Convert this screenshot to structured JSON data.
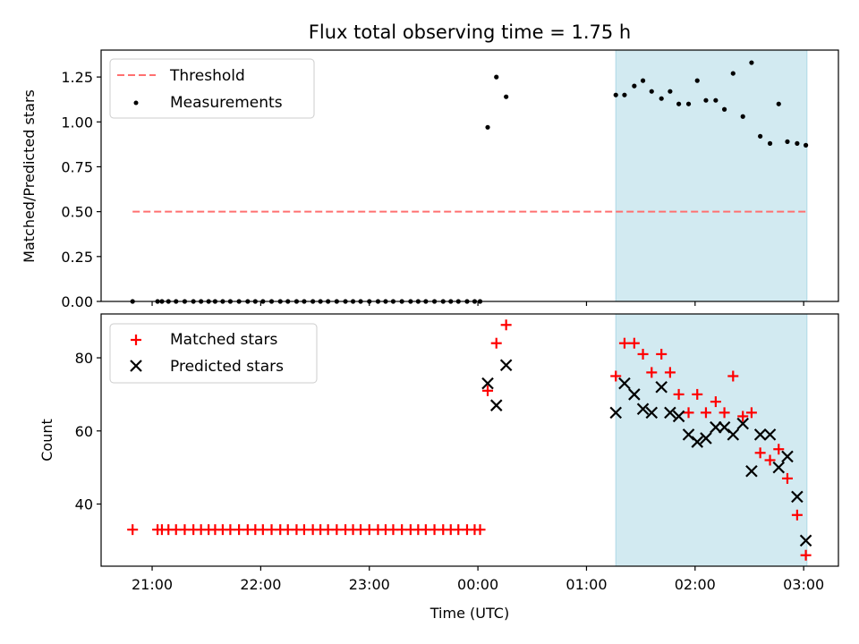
{
  "title": "Flux total observing time = 1.75 h",
  "colors": {
    "threshold": "#ff7070",
    "measurement": "#000000",
    "matched": "#ff0000",
    "predicted": "#000000",
    "shade": "#add8e6"
  },
  "chart_data": [
    {
      "type": "scatter",
      "ylabel": "Matched/Predicted stars",
      "ylim": [
        0,
        1.4
      ],
      "yticks": [
        "0.00",
        "0.25",
        "0.50",
        "0.75",
        "1.00",
        "1.25"
      ],
      "yticks_values": [
        0,
        0.25,
        0.5,
        0.75,
        1.0,
        1.25
      ],
      "shaded_region": {
        "start": 25.27,
        "end": 27.03
      },
      "legend": {
        "placement": "upper-left",
        "entries": [
          "Threshold",
          "Measurements"
        ]
      },
      "series": [
        {
          "name": "Threshold",
          "kind": "line",
          "x": [
            20.82,
            27.03
          ],
          "y": [
            0.5,
            0.5
          ]
        },
        {
          "name": "Measurements",
          "kind": "scatter",
          "x": [
            20.82,
            21.05,
            21.09,
            21.15,
            21.22,
            21.3,
            21.38,
            21.45,
            21.52,
            21.58,
            21.65,
            21.72,
            21.8,
            21.88,
            21.95,
            22.02,
            22.1,
            22.18,
            22.25,
            22.33,
            22.4,
            22.48,
            22.55,
            22.62,
            22.7,
            22.78,
            22.85,
            22.92,
            23.0,
            23.08,
            23.15,
            23.22,
            23.3,
            23.38,
            23.45,
            23.52,
            23.6,
            23.68,
            23.75,
            23.82,
            23.9,
            23.97,
            24.02,
            24.09,
            24.17,
            24.26,
            25.27,
            25.35,
            25.44,
            25.52,
            25.6,
            25.69,
            25.77,
            25.85,
            25.94,
            26.02,
            26.1,
            26.19,
            26.27,
            26.35,
            26.44,
            26.52,
            26.6,
            26.69,
            26.77,
            26.85,
            26.94,
            27.02
          ],
          "y": [
            0,
            0,
            0,
            0,
            0,
            0,
            0,
            0,
            0,
            0,
            0,
            0,
            0,
            0,
            0,
            0,
            0,
            0,
            0,
            0,
            0,
            0,
            0,
            0,
            0,
            0,
            0,
            0,
            0,
            0,
            0,
            0,
            0,
            0,
            0,
            0,
            0,
            0,
            0,
            0,
            0,
            0,
            0,
            0.97,
            1.25,
            1.14,
            1.15,
            1.15,
            1.2,
            1.23,
            1.17,
            1.13,
            1.17,
            1.1,
            1.1,
            1.23,
            1.12,
            1.12,
            1.07,
            1.27,
            1.03,
            1.33,
            0.92,
            0.88,
            1.1,
            0.89,
            0.88,
            0.87
          ]
        }
      ]
    },
    {
      "type": "scatter",
      "xlabel": "Time (UTC)",
      "ylabel": "Count",
      "ylim": [
        23,
        92
      ],
      "yticks": [
        "40",
        "60",
        "80"
      ],
      "yticks_values": [
        40,
        60,
        80
      ],
      "xlim": [
        20.53,
        27.32
      ],
      "xticks": [
        "21:00",
        "22:00",
        "23:00",
        "00:00",
        "01:00",
        "02:00",
        "03:00"
      ],
      "xticks_values": [
        21,
        22,
        23,
        24,
        25,
        26,
        27
      ],
      "shaded_region": {
        "start": 25.27,
        "end": 27.03
      },
      "legend": {
        "placement": "upper-left",
        "entries": [
          "Matched stars",
          "Predicted stars"
        ]
      },
      "series": [
        {
          "name": "Matched stars",
          "kind": "plus",
          "x": [
            20.82,
            21.05,
            21.09,
            21.15,
            21.22,
            21.3,
            21.38,
            21.45,
            21.52,
            21.58,
            21.65,
            21.72,
            21.8,
            21.88,
            21.95,
            22.02,
            22.1,
            22.18,
            22.25,
            22.33,
            22.4,
            22.48,
            22.55,
            22.62,
            22.7,
            22.78,
            22.85,
            22.92,
            23.0,
            23.08,
            23.15,
            23.22,
            23.3,
            23.38,
            23.45,
            23.52,
            23.6,
            23.68,
            23.75,
            23.82,
            23.9,
            23.97,
            24.02,
            24.09,
            24.17,
            24.26,
            25.27,
            25.35,
            25.44,
            25.52,
            25.6,
            25.69,
            25.77,
            25.85,
            25.94,
            26.02,
            26.1,
            26.19,
            26.27,
            26.35,
            26.44,
            26.52,
            26.6,
            26.69,
            26.77,
            26.85,
            26.94,
            27.02
          ],
          "y": [
            33,
            33,
            33,
            33,
            33,
            33,
            33,
            33,
            33,
            33,
            33,
            33,
            33,
            33,
            33,
            33,
            33,
            33,
            33,
            33,
            33,
            33,
            33,
            33,
            33,
            33,
            33,
            33,
            33,
            33,
            33,
            33,
            33,
            33,
            33,
            33,
            33,
            33,
            33,
            33,
            33,
            33,
            33,
            71,
            84,
            89,
            75,
            84,
            84,
            81,
            76,
            81,
            76,
            70,
            65,
            70,
            65,
            68,
            65,
            75,
            64,
            65,
            54,
            52,
            55,
            47,
            37,
            26
          ]
        },
        {
          "name": "Predicted stars",
          "kind": "cross",
          "x": [
            24.09,
            24.17,
            24.26,
            25.27,
            25.35,
            25.44,
            25.52,
            25.6,
            25.69,
            25.77,
            25.85,
            25.94,
            26.02,
            26.1,
            26.19,
            26.27,
            26.35,
            26.44,
            26.52,
            26.6,
            26.69,
            26.77,
            26.85,
            26.94,
            27.02
          ],
          "y": [
            73,
            67,
            78,
            65,
            73,
            70,
            66,
            65,
            72,
            65,
            64,
            59,
            57,
            58,
            61,
            61,
            59,
            62,
            49,
            59,
            59,
            50,
            53,
            42,
            30
          ]
        }
      ]
    }
  ]
}
